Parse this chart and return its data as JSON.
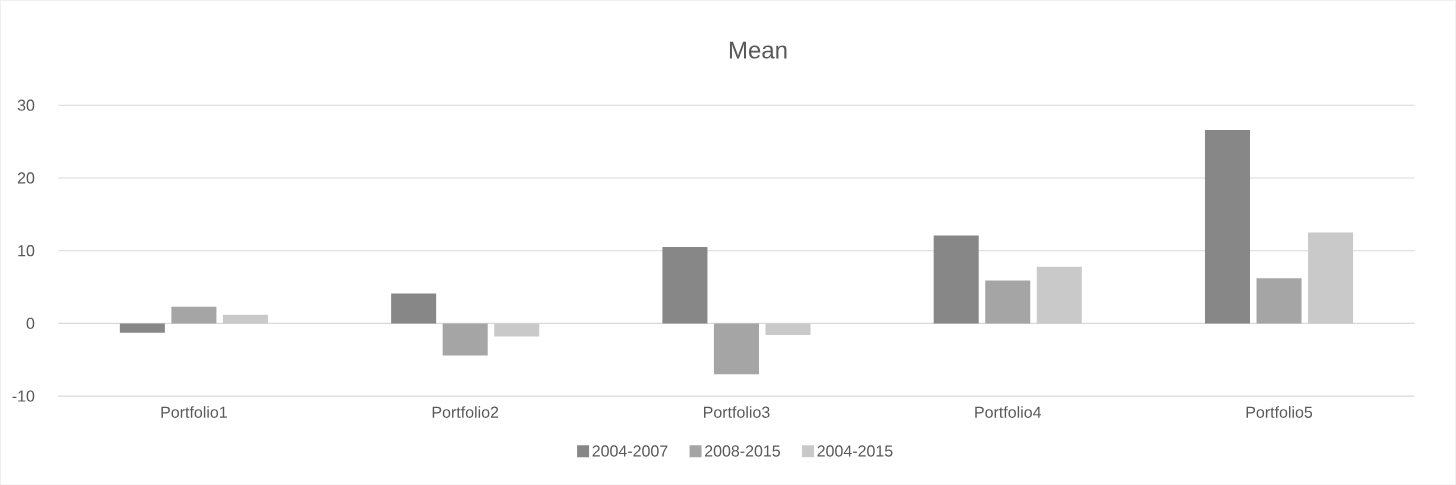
{
  "chart_data": {
    "type": "bar",
    "title": "Mean",
    "categories": [
      "Portfolio1",
      "Portfolio2",
      "Portfolio3",
      "Portfolio4",
      "Portfolio5"
    ],
    "series": [
      {
        "name": "2004-2007",
        "color": "#878787",
        "values": [
          -1.3,
          4.1,
          10.5,
          12.1,
          26.6
        ]
      },
      {
        "name": "2008-2015",
        "color": "#a5a5a5",
        "values": [
          2.3,
          -4.4,
          -7.0,
          5.9,
          6.2
        ]
      },
      {
        "name": "2004-2015",
        "color": "#c9c9c9",
        "values": [
          1.2,
          -1.8,
          -1.6,
          7.8,
          12.5
        ]
      }
    ],
    "ylim": [
      -10,
      30
    ],
    "yticks": [
      -10,
      0,
      10,
      20,
      30
    ],
    "grid": "y",
    "legend": "bottom"
  }
}
